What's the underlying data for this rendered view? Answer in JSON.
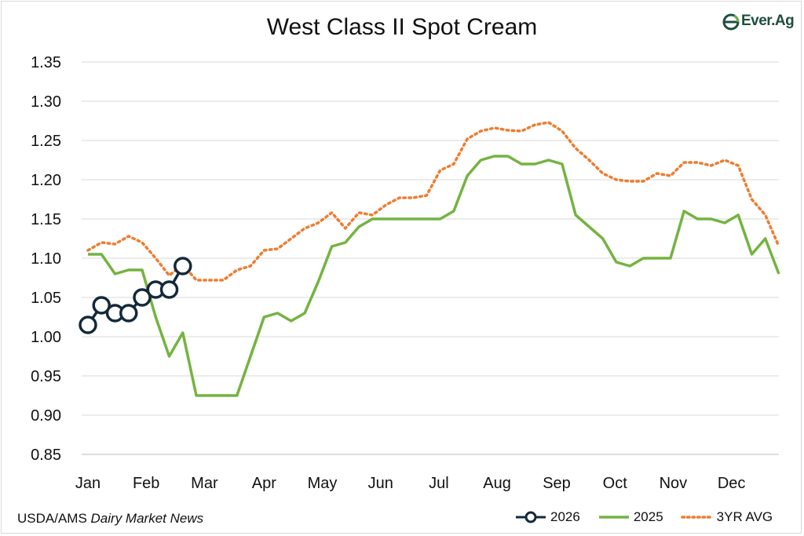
{
  "source": {
    "prefix": "USDA/AMS ",
    "italic": "Dairy Market News"
  },
  "logo": {
    "text": "Ever.Ag",
    "color": "#1f4e3d"
  },
  "chart_data": {
    "type": "line",
    "title": "West Class II Spot Cream",
    "xlabel": "",
    "ylabel": "",
    "ylim": [
      0.85,
      1.35
    ],
    "yticks": [
      "0.85",
      "0.90",
      "0.95",
      "1.00",
      "1.05",
      "1.10",
      "1.15",
      "1.20",
      "1.25",
      "1.30",
      "1.35"
    ],
    "ytick_values": [
      0.85,
      0.9,
      0.95,
      1.0,
      1.05,
      1.1,
      1.15,
      1.2,
      1.25,
      1.3,
      1.35
    ],
    "xlim": [
      1,
      52
    ],
    "x_axis_unit": "week of year",
    "xticks": [
      "Jan",
      "Feb",
      "Mar",
      "Apr",
      "May",
      "Jun",
      "Jul",
      "Aug",
      "Sep",
      "Oct",
      "Nov",
      "Dec"
    ],
    "xtick_positions": [
      1,
      5.3,
      9.6,
      14,
      18.3,
      22.6,
      26.9,
      31.2,
      35.6,
      39.9,
      44.2,
      48.5
    ],
    "grid": "horizontal",
    "legend_position": "bottom-right",
    "series": [
      {
        "name": "2026",
        "color": "#14293a",
        "style": "solid-markers",
        "x": [
          1,
          2,
          3,
          4,
          5,
          6,
          7,
          8
        ],
        "values": [
          1.015,
          1.04,
          1.03,
          1.03,
          1.05,
          1.06,
          1.06,
          1.09
        ]
      },
      {
        "name": "2025",
        "color": "#74b341",
        "style": "solid",
        "x": [
          1,
          2,
          3,
          4,
          5,
          6,
          7,
          8,
          9,
          10,
          11,
          12,
          13,
          14,
          15,
          16,
          17,
          18,
          19,
          20,
          21,
          22,
          23,
          24,
          25,
          26,
          27,
          28,
          29,
          30,
          31,
          32,
          33,
          34,
          35,
          36,
          37,
          38,
          39,
          40,
          41,
          42,
          43,
          44,
          45,
          46,
          47,
          48,
          49,
          50,
          51,
          52
        ],
        "values": [
          1.105,
          1.105,
          1.08,
          1.085,
          1.085,
          1.025,
          0.975,
          1.005,
          0.925,
          0.925,
          0.925,
          0.925,
          0.975,
          1.025,
          1.03,
          1.02,
          1.03,
          1.07,
          1.115,
          1.12,
          1.14,
          1.15,
          1.15,
          1.15,
          1.15,
          1.15,
          1.15,
          1.16,
          1.205,
          1.225,
          1.23,
          1.23,
          1.22,
          1.22,
          1.225,
          1.22,
          1.155,
          1.14,
          1.125,
          1.095,
          1.09,
          1.1,
          1.1,
          1.1,
          1.16,
          1.15,
          1.15,
          1.145,
          1.155,
          1.105,
          1.125,
          1.08
        ]
      },
      {
        "name": "3YR AVG",
        "color": "#ed7d31",
        "style": "dotted",
        "x": [
          1,
          2,
          3,
          4,
          5,
          6,
          7,
          8,
          9,
          10,
          11,
          12,
          13,
          14,
          15,
          16,
          17,
          18,
          19,
          20,
          21,
          22,
          23,
          24,
          25,
          26,
          27,
          28,
          29,
          30,
          31,
          32,
          33,
          34,
          35,
          36,
          37,
          38,
          39,
          40,
          41,
          42,
          43,
          44,
          45,
          46,
          47,
          48,
          49,
          50,
          51,
          52
        ],
        "values": [
          1.11,
          1.12,
          1.118,
          1.128,
          1.12,
          1.1,
          1.078,
          1.092,
          1.072,
          1.072,
          1.072,
          1.085,
          1.09,
          1.11,
          1.112,
          1.125,
          1.138,
          1.145,
          1.158,
          1.138,
          1.158,
          1.155,
          1.168,
          1.177,
          1.177,
          1.18,
          1.212,
          1.22,
          1.252,
          1.262,
          1.266,
          1.263,
          1.262,
          1.27,
          1.273,
          1.262,
          1.24,
          1.225,
          1.208,
          1.2,
          1.198,
          1.198,
          1.208,
          1.205,
          1.222,
          1.222,
          1.218,
          1.225,
          1.218,
          1.175,
          1.155,
          1.115
        ]
      }
    ]
  }
}
